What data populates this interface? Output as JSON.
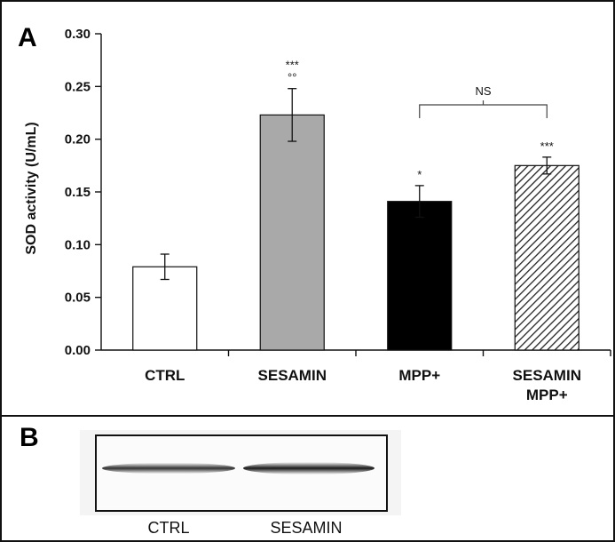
{
  "panels": {
    "a_letter": "A",
    "b_letter": "B"
  },
  "chart_data": {
    "type": "bar",
    "ylabel": "SOD activity (U/mL)",
    "xlabel": "",
    "ylim": [
      0,
      0.3
    ],
    "yticks": [
      "0.00",
      "0.05",
      "0.10",
      "0.15",
      "0.20",
      "0.25",
      "0.30"
    ],
    "grid": false,
    "categories": [
      [
        "CTRL"
      ],
      [
        "SESAMIN"
      ],
      [
        "MPP+"
      ],
      [
        "SESAMIN",
        "MPP+"
      ]
    ],
    "values": [
      0.079,
      0.223,
      0.141,
      0.175
    ],
    "errors": [
      0.012,
      0.025,
      0.015,
      0.008
    ],
    "fills": [
      "#ffffff",
      "#a9a9a9",
      "#000000",
      "hatch"
    ],
    "annotations": [
      {
        "bar": 1,
        "lines": [
          "***",
          "°°"
        ]
      },
      {
        "bar": 2,
        "lines": [
          "*"
        ]
      },
      {
        "bar": 3,
        "lines": [
          "***"
        ]
      }
    ],
    "bracket": {
      "from": 2,
      "to": 3,
      "label": "NS"
    }
  },
  "blot": {
    "lanes": [
      "CTRL",
      "SESAMIN"
    ],
    "band_intensity": [
      0.75,
      1.0
    ]
  }
}
